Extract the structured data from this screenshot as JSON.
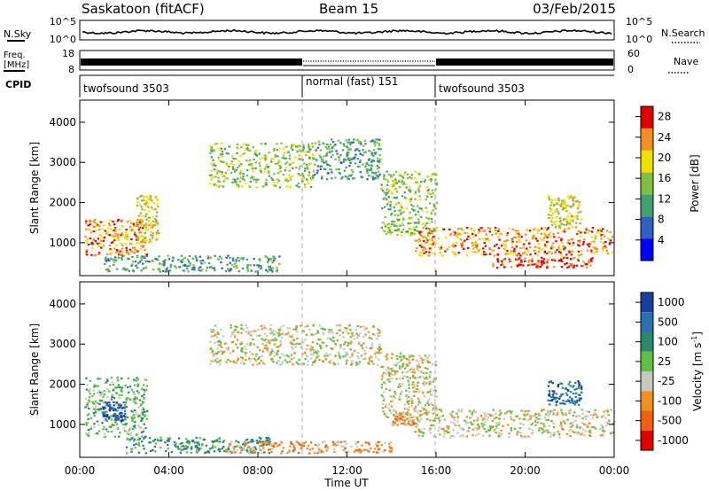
{
  "header": {
    "title": "Saskatoon (fitACF)",
    "beam": "Beam 15",
    "date": "03/Feb/2015"
  },
  "summary": {
    "nsky_label": "N.Sky",
    "nsky_ticks": [
      "10^5",
      "10^0"
    ],
    "nsearch_label": "N.Search",
    "nsearch_ticks": [
      "10^5",
      "10^0"
    ],
    "freq_label": "Freq.",
    "freq_unit": "[MHz]",
    "freq_ticks": [
      "18",
      "8"
    ],
    "nave_label": "Nave",
    "nave_ticks": [
      "60",
      "0"
    ],
    "cpid_label": "CPID",
    "cpid_segments": [
      {
        "name": "twofsound 3503",
        "start_h": 0,
        "end_h": 10
      },
      {
        "name": "normal (fast) 151",
        "start_h": 10,
        "end_h": 16
      },
      {
        "name": "twofsound 3503",
        "start_h": 16,
        "end_h": 24
      }
    ]
  },
  "chart_data": [
    {
      "type": "heatmap",
      "ylabel": "Slant Range [km]",
      "yticks": [
        1000,
        2000,
        3000,
        4000
      ],
      "ylim": [
        180,
        4550
      ],
      "colorbar": {
        "label": "Power [dB]",
        "ticks": [
          4,
          8,
          12,
          16,
          20,
          24,
          28
        ],
        "range": [
          0,
          30
        ],
        "colors": [
          "#0000ff",
          "#3060c0",
          "#40a070",
          "#80c040",
          "#f0e000",
          "#f09020",
          "#e00000"
        ]
      },
      "features": [
        {
          "x": [
            0.2,
            3.0
          ],
          "y": [
            700,
            1600
          ],
          "level": 22
        },
        {
          "x": [
            2.5,
            3.5
          ],
          "y": [
            1000,
            2200
          ],
          "level": 18
        },
        {
          "x": [
            5.8,
            10.5
          ],
          "y": [
            2400,
            3500
          ],
          "level": 13
        },
        {
          "x": [
            10.5,
            13.5
          ],
          "y": [
            2600,
            3600
          ],
          "level": 11
        },
        {
          "x": [
            13.5,
            16.0
          ],
          "y": [
            1200,
            2800
          ],
          "level": 15
        },
        {
          "x": [
            15.0,
            24.0
          ],
          "y": [
            700,
            1400
          ],
          "level": 22
        },
        {
          "x": [
            18.5,
            23.0
          ],
          "y": [
            400,
            650
          ],
          "level": 29
        },
        {
          "x": [
            1.0,
            9.0
          ],
          "y": [
            300,
            700
          ],
          "level": 10
        },
        {
          "x": [
            21.0,
            22.5
          ],
          "y": [
            1400,
            2200
          ],
          "level": 18
        }
      ]
    },
    {
      "type": "heatmap",
      "xlabel": "Time UT",
      "xticks": [
        "00:00",
        "04:00",
        "08:00",
        "12:00",
        "16:00",
        "20:00",
        "00:00"
      ],
      "xlim": [
        0,
        24
      ],
      "ylabel": "Slant Range [km]",
      "yticks": [
        1000,
        2000,
        3000,
        4000
      ],
      "ylim": [
        180,
        4550
      ],
      "colorbar": {
        "label": "Velocity [m s^-1]",
        "ticks": [
          "1000",
          "500",
          "100",
          "25",
          "-25",
          "-100",
          "-500",
          "-1000"
        ],
        "colors": [
          "#1a3fa0",
          "#2a70b0",
          "#2a8a6a",
          "#60c040",
          "#c8c8c0",
          "#f09020",
          "#f06010",
          "#e00000"
        ]
      },
      "features": [
        {
          "x": [
            0.2,
            3.0
          ],
          "y": [
            700,
            2200
          ],
          "level": "25"
        },
        {
          "x": [
            1.0,
            2.0
          ],
          "y": [
            1100,
            1600
          ],
          "level": "1000"
        },
        {
          "x": [
            5.8,
            13.5
          ],
          "y": [
            2500,
            3500
          ],
          "level": "-25"
        },
        {
          "x": [
            13.5,
            16.0
          ],
          "y": [
            1200,
            2800
          ],
          "level": "-25"
        },
        {
          "x": [
            14.0,
            15.0
          ],
          "y": [
            1000,
            1300
          ],
          "level": "-100"
        },
        {
          "x": [
            15.0,
            24.0
          ],
          "y": [
            700,
            1400
          ],
          "level": "-25"
        },
        {
          "x": [
            2.0,
            8.5
          ],
          "y": [
            300,
            700
          ],
          "level": "100"
        },
        {
          "x": [
            6.5,
            14.0
          ],
          "y": [
            300,
            600
          ],
          "level": "-100"
        },
        {
          "x": [
            21.0,
            22.5
          ],
          "y": [
            1500,
            2100
          ],
          "level": "500"
        }
      ]
    }
  ]
}
